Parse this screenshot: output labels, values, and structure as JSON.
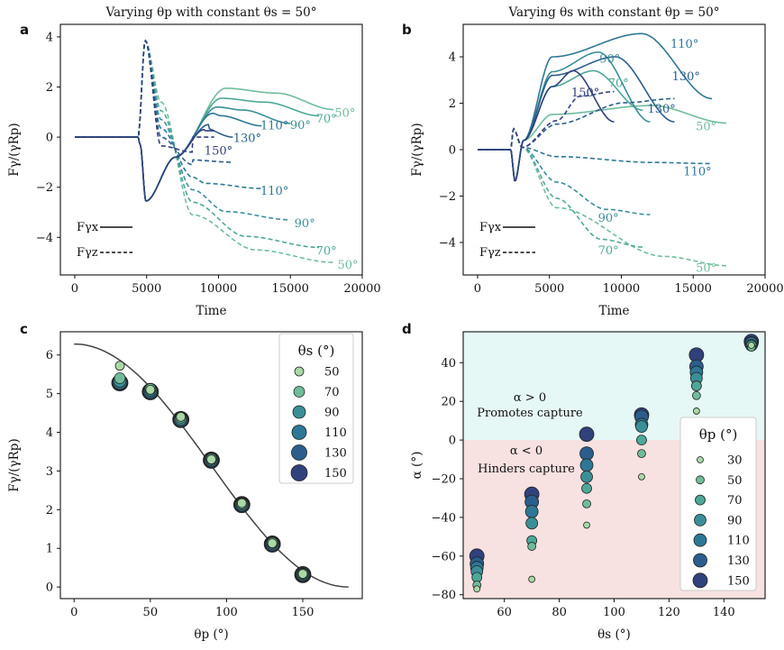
{
  "colors": {
    "c30": "#a9d8a6",
    "c50": "#6fbc9b",
    "c70": "#4da898",
    "c90": "#3a8f97",
    "c110": "#2e7796",
    "c130": "#2b5e8c",
    "c150": "#31417c",
    "capture_bg": "#e6f8f5",
    "hinder_bg": "#f8e1e1",
    "fit_line": "#444444"
  },
  "chart_data": [
    {
      "panel": "a",
      "type": "line",
      "title": "Varying θp with constant θs = 50°",
      "xlabel": "Time",
      "ylabel": "Fγ/(γRp)",
      "xlim": [
        -1000,
        20000
      ],
      "ylim": [
        -5.5,
        4.5
      ],
      "xticks": [
        0,
        5000,
        10000,
        15000,
        20000
      ],
      "yticks": [
        -4,
        -2,
        0,
        2,
        4
      ],
      "xtick_labels": [
        "0",
        "5000",
        "10000",
        "15000",
        "20000"
      ],
      "ytick_labels": [
        "−4",
        "−2",
        "0",
        "2",
        "4"
      ],
      "legend": {
        "placement": "lower-left",
        "entries": [
          {
            "label": "Fγx",
            "style": "solid"
          },
          {
            "label": "Fγz",
            "style": "dashed"
          }
        ]
      },
      "series": [
        {
          "label": "50°",
          "color_key": "c50",
          "t_end": 18000,
          "x_end": 1.1,
          "z_end": -5.0
        },
        {
          "label": "70°",
          "color_key": "c70",
          "t_end": 17000,
          "x_end": 0.85,
          "z_end": -4.4
        },
        {
          "label": "90°",
          "color_key": "c90",
          "t_end": 15000,
          "x_end": 0.55,
          "z_end": -3.3
        },
        {
          "label": "110°",
          "color_key": "c110",
          "t_end": 13000,
          "x_end": 0.45,
          "z_end": -2.05
        },
        {
          "label": "130°",
          "color_key": "c130",
          "t_end": 11000,
          "x_end": 0.0,
          "z_end": -1.0
        },
        {
          "label": "150°",
          "color_key": "c150",
          "t_end": 9700,
          "x_end": 0.25,
          "z_end": 0.0
        }
      ],
      "series_labels": [
        {
          "text": "50°",
          "x": 18800,
          "y": 0.95,
          "color_key": "c50"
        },
        {
          "text": "70°",
          "x": 17500,
          "y": 0.72,
          "color_key": "c70"
        },
        {
          "text": "90°",
          "x": 15700,
          "y": 0.48,
          "color_key": "c90"
        },
        {
          "text": "110°",
          "x": 13900,
          "y": 0.45,
          "color_key": "c110"
        },
        {
          "text": "130°",
          "x": 12000,
          "y": -0.05,
          "color_key": "c130"
        },
        {
          "text": "150°",
          "x": 10000,
          "y": -0.55,
          "color_key": "c150"
        },
        {
          "text": "110°",
          "x": 13900,
          "y": -2.15,
          "color_key": "c110"
        },
        {
          "text": "90°",
          "x": 16000,
          "y": -3.45,
          "color_key": "c90"
        },
        {
          "text": "70°",
          "x": 17500,
          "y": -4.55,
          "color_key": "c70"
        },
        {
          "text": "50°",
          "x": 19000,
          "y": -5.1,
          "color_key": "c50"
        }
      ]
    },
    {
      "panel": "b",
      "type": "line",
      "title": "Varying θs with constant θp = 50°",
      "xlabel": "Time",
      "ylabel": "Fγ/(γRp)",
      "xlim": [
        -1000,
        20000
      ],
      "ylim": [
        -5.4,
        5.4
      ],
      "xticks": [
        0,
        5000,
        10000,
        15000,
        20000
      ],
      "yticks": [
        -4,
        -2,
        0,
        2,
        4
      ],
      "xtick_labels": [
        "0",
        "5000",
        "10000",
        "15000",
        "20000"
      ],
      "ytick_labels": [
        "−4",
        "−2",
        "0",
        "2",
        "4"
      ],
      "legend": {
        "placement": "lower-left",
        "entries": [
          {
            "label": "Fγx",
            "style": "solid"
          },
          {
            "label": "Fγz",
            "style": "dashed"
          }
        ]
      },
      "series": [
        {
          "label": "50°",
          "color_key": "c50",
          "t_end": 17300,
          "x_peak": 1.9,
          "x_end": 1.15,
          "z_end": -5.0
        },
        {
          "label": "70°",
          "color_key": "c70",
          "t_end": 11500,
          "x_peak": 3.4,
          "x_end": 1.7,
          "z_end": -4.2
        },
        {
          "label": "90°",
          "color_key": "c90",
          "t_end": 12000,
          "x_peak": 4.2,
          "x_end": 1.2,
          "z_end": -2.8
        },
        {
          "label": "110°",
          "color_key": "c110",
          "t_end": 16300,
          "x_peak": 5.0,
          "x_end": 2.2,
          "z_end": -0.6
        },
        {
          "label": "130°",
          "color_key": "c130",
          "t_end": 13700,
          "x_peak": 4.0,
          "x_end": 1.2,
          "z_end": 2.2
        },
        {
          "label": "150°",
          "color_key": "c150",
          "t_end": 9500,
          "x_peak": 3.4,
          "x_end": 1.2,
          "z_end": 2.5
        }
      ],
      "series_labels": [
        {
          "text": "110°",
          "x": 14400,
          "y": 4.55,
          "color_key": "c110"
        },
        {
          "text": "90°",
          "x": 9200,
          "y": 3.9,
          "color_key": "c90"
        },
        {
          "text": "130°",
          "x": 14500,
          "y": 3.15,
          "color_key": "c130"
        },
        {
          "text": "70°",
          "x": 9800,
          "y": 2.85,
          "color_key": "c70"
        },
        {
          "text": "150°",
          "x": 7500,
          "y": 2.45,
          "color_key": "c150"
        },
        {
          "text": "130°",
          "x": 12800,
          "y": 1.75,
          "color_key": "c130"
        },
        {
          "text": "50°",
          "x": 15900,
          "y": 1.0,
          "color_key": "c50"
        },
        {
          "text": "110°",
          "x": 15300,
          "y": -0.95,
          "color_key": "c110"
        },
        {
          "text": "90°",
          "x": 9100,
          "y": -2.95,
          "color_key": "c90"
        },
        {
          "text": "70°",
          "x": 9100,
          "y": -4.35,
          "color_key": "c70"
        },
        {
          "text": "50°",
          "x": 15900,
          "y": -5.1,
          "color_key": "c50"
        }
      ]
    },
    {
      "panel": "c",
      "type": "scatter",
      "xlabel": "θp (°)",
      "ylabel": "Fγ/(γRp)",
      "xlim": [
        -9,
        189
      ],
      "ylim": [
        -0.3,
        6.6
      ],
      "xticks": [
        0,
        50,
        100,
        150
      ],
      "yticks": [
        0,
        1,
        2,
        3,
        4,
        5,
        6
      ],
      "xtick_labels": [
        "0",
        "50",
        "100",
        "150"
      ],
      "ytick_labels": [
        "0",
        "1",
        "2",
        "3",
        "4",
        "5",
        "6"
      ],
      "fit_curve": "2π·cos²(θp/2)",
      "legend": {
        "title": "θs (°)",
        "placement": "top-right",
        "entries": [
          "50",
          "70",
          "90",
          "110",
          "130",
          "150"
        ]
      },
      "series": [
        {
          "name": "50",
          "color_key": "c30",
          "size": 5,
          "points": [
            [
              30,
              5.72
            ],
            [
              50,
              5.1
            ],
            [
              70,
              4.4
            ],
            [
              90,
              3.3
            ],
            [
              110,
              2.17
            ],
            [
              130,
              1.13
            ],
            [
              150,
              0.34
            ]
          ]
        },
        {
          "name": "70",
          "color_key": "c50",
          "size": 6,
          "points": [
            [
              30,
              5.4
            ],
            [
              50,
              5.12
            ],
            [
              70,
              4.38
            ],
            [
              90,
              3.31
            ],
            [
              110,
              2.16
            ],
            [
              130,
              1.14
            ],
            [
              150,
              0.34
            ]
          ]
        },
        {
          "name": "90",
          "color_key": "c90",
          "size": 7,
          "points": [
            [
              30,
              5.33
            ],
            [
              50,
              5.1
            ],
            [
              70,
              4.35
            ],
            [
              90,
              3.3
            ],
            [
              110,
              2.15
            ],
            [
              130,
              1.13
            ],
            [
              150,
              0.33
            ]
          ]
        },
        {
          "name": "110",
          "color_key": "c110",
          "size": 8,
          "points": [
            [
              30,
              5.3
            ],
            [
              50,
              5.08
            ],
            [
              70,
              4.34
            ],
            [
              90,
              3.29
            ],
            [
              110,
              2.14
            ],
            [
              130,
              1.12
            ],
            [
              150,
              0.33
            ]
          ]
        },
        {
          "name": "130",
          "color_key": "c130",
          "size": 8.5,
          "points": [
            [
              30,
              5.29
            ],
            [
              50,
              5.06
            ],
            [
              70,
              4.33
            ],
            [
              90,
              3.29
            ],
            [
              110,
              2.14
            ],
            [
              130,
              1.12
            ],
            [
              150,
              0.33
            ]
          ]
        },
        {
          "name": "150",
          "color_key": "c150",
          "size": 9,
          "points": [
            [
              30,
              5.28
            ],
            [
              50,
              5.05
            ],
            [
              70,
              4.33
            ],
            [
              90,
              3.28
            ],
            [
              110,
              2.13
            ],
            [
              130,
              1.11
            ],
            [
              150,
              0.32
            ]
          ]
        }
      ]
    },
    {
      "panel": "d",
      "type": "scatter",
      "xlabel": "θs (°)",
      "ylabel": "α (°)",
      "xlim": [
        45,
        155
      ],
      "ylim": [
        -82,
        56
      ],
      "xticks": [
        60,
        80,
        100,
        120,
        140
      ],
      "yticks": [
        -80,
        -60,
        -40,
        -20,
        0,
        20,
        40
      ],
      "xtick_labels": [
        "60",
        "80",
        "100",
        "120",
        "140"
      ],
      "ytick_labels": [
        "−80",
        "−60",
        "−40",
        "−20",
        "0",
        "20",
        "40"
      ],
      "regions": [
        {
          "label_line1": "α > 0",
          "label_line2": "Promotes capture",
          "y_from": 0,
          "y_to": 56,
          "color_key": "capture_bg"
        },
        {
          "label_line1": "α < 0",
          "label_line2": "Hinders capture",
          "y_from": -82,
          "y_to": 0,
          "color_key": "hinder_bg"
        }
      ],
      "legend": {
        "title": "θp (°)",
        "placement": "bottom-right",
        "entries": [
          "30",
          "50",
          "70",
          "90",
          "110",
          "130",
          "150"
        ]
      },
      "series": [
        {
          "name": "30",
          "color_key": "c30",
          "size": 3.5,
          "points": [
            [
              50,
              -77
            ],
            [
              70,
              -72
            ],
            [
              90,
              -44
            ],
            [
              110,
              -19
            ],
            [
              130,
              15
            ],
            [
              150,
              49
            ]
          ]
        },
        {
          "name": "50",
          "color_key": "c50",
          "size": 4.5,
          "points": [
            [
              50,
              -75
            ],
            [
              70,
              -55
            ],
            [
              90,
              -33
            ],
            [
              110,
              -7
            ],
            [
              130,
              23
            ],
            [
              150,
              48
            ]
          ]
        },
        {
          "name": "70",
          "color_key": "c70",
          "size": 5.5,
          "points": [
            [
              50,
              -71
            ],
            [
              70,
              -52
            ],
            [
              90,
              -25
            ],
            [
              110,
              0
            ],
            [
              130,
              28
            ],
            [
              150,
              49
            ]
          ]
        },
        {
          "name": "90",
          "color_key": "c90",
          "size": 6.5,
          "points": [
            [
              50,
              -68
            ],
            [
              70,
              -43
            ],
            [
              90,
              -19
            ],
            [
              110,
              7
            ],
            [
              130,
              32
            ],
            [
              150,
              49
            ]
          ]
        },
        {
          "name": "110",
          "color_key": "c110",
          "size": 7,
          "points": [
            [
              50,
              -66
            ],
            [
              70,
              -37
            ],
            [
              90,
              -13
            ],
            [
              110,
              8
            ],
            [
              130,
              35
            ],
            [
              150,
              50
            ]
          ]
        },
        {
          "name": "130",
          "color_key": "c130",
          "size": 7.5,
          "points": [
            [
              50,
              -64
            ],
            [
              70,
              -32
            ],
            [
              90,
              -7
            ],
            [
              110,
              12
            ],
            [
              130,
              38
            ],
            [
              150,
              50
            ]
          ]
        },
        {
          "name": "150",
          "color_key": "c150",
          "size": 8,
          "points": [
            [
              50,
              -60
            ],
            [
              70,
              -28
            ],
            [
              90,
              3
            ],
            [
              110,
              13
            ],
            [
              130,
              44
            ],
            [
              150,
              51
            ]
          ]
        }
      ]
    }
  ]
}
